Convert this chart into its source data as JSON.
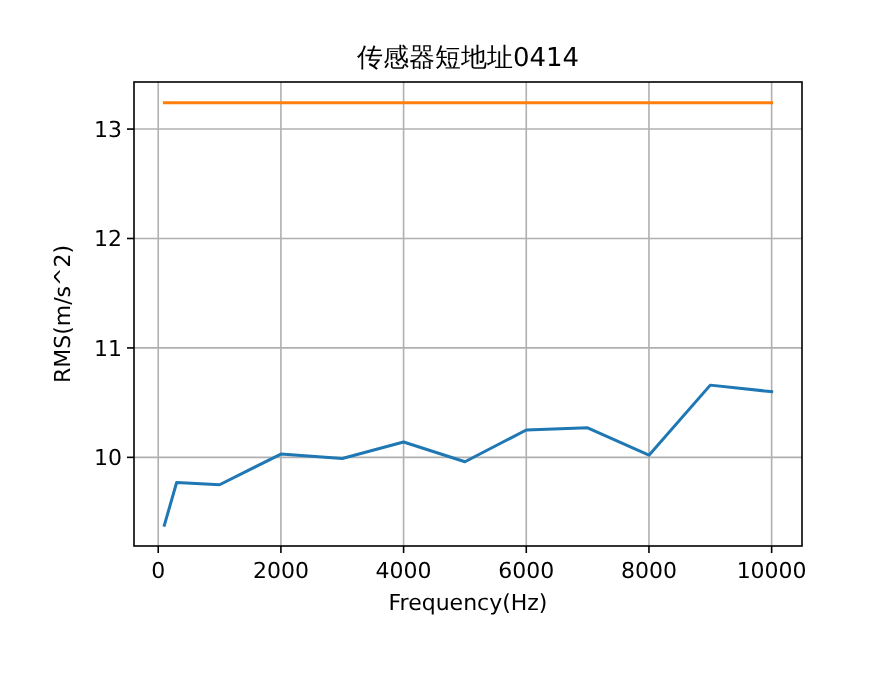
{
  "chart_data": {
    "type": "line",
    "title": "传感器短地址0414",
    "xlabel": "Frequency(Hz)",
    "ylabel": "RMS(m/s^2)",
    "xlim": [
      -395,
      10495
    ],
    "xticks": [
      0,
      2000,
      4000,
      6000,
      8000,
      10000
    ],
    "ylim": [
      9.19,
      13.43
    ],
    "yticks": [
      10,
      11,
      12,
      13
    ],
    "grid": true,
    "series": [
      {
        "color": "#1f77b4",
        "x": [
          100,
          300,
          1000,
          2000,
          3000,
          4000,
          5000,
          6000,
          7000,
          8000,
          9000,
          10000
        ],
        "values": [
          9.38,
          9.77,
          9.75,
          10.03,
          9.99,
          10.14,
          9.96,
          10.25,
          10.27,
          10.02,
          10.66,
          10.6
        ]
      },
      {
        "color": "#ff7f0e",
        "x": [
          100,
          10000
        ],
        "values": [
          13.24,
          13.24
        ]
      }
    ]
  }
}
